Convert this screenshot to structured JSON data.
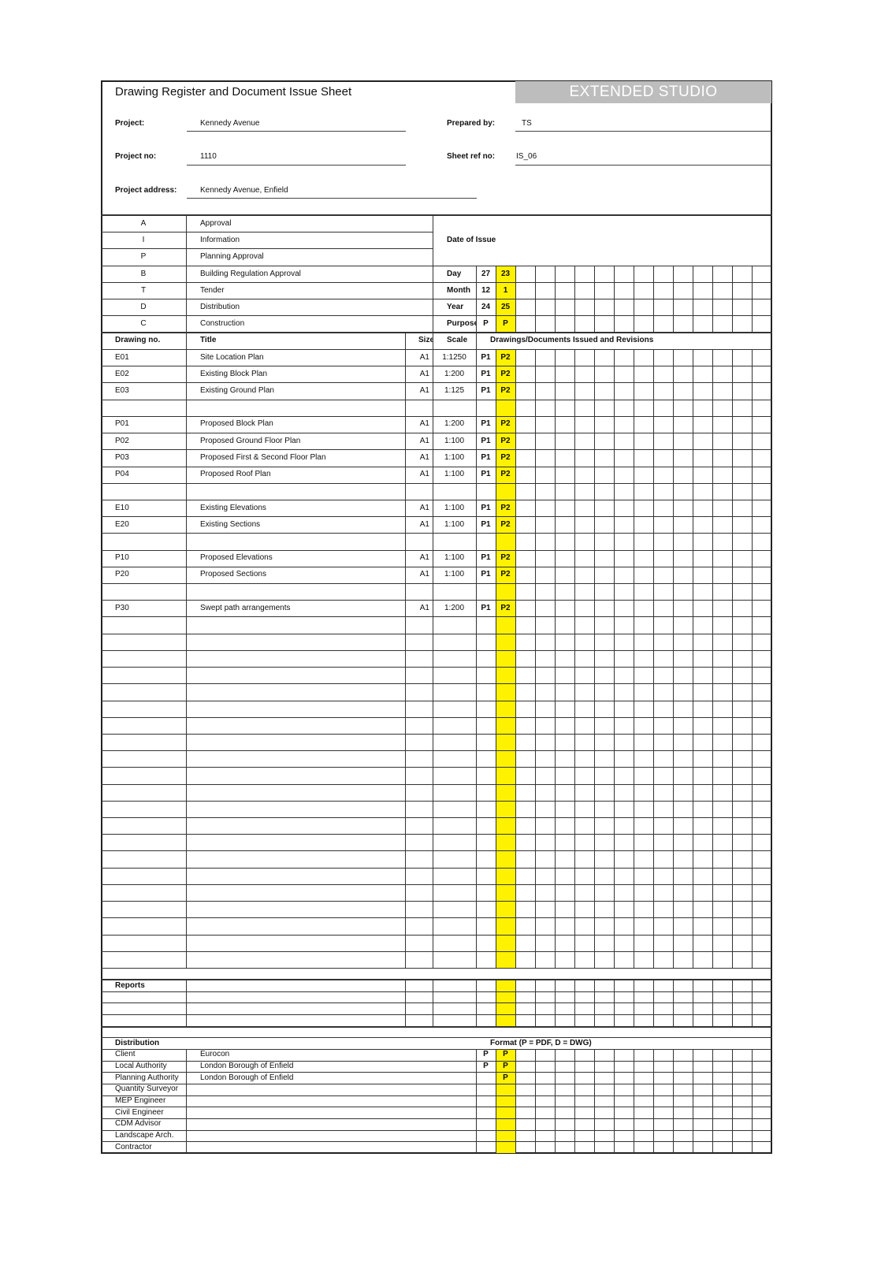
{
  "header": {
    "title": "Drawing Register and Document Issue Sheet",
    "brand": "EXTENDED STUDIO",
    "project_label": "Project:",
    "project": "Kennedy Avenue",
    "project_no_label": "Project no:",
    "project_no": "1110",
    "address_label": "Project address:",
    "address": "Kennedy Avenue, Enfield",
    "prepared_by_label": "Prepared by:",
    "prepared_by": "TS",
    "sheet_ref_label": "Sheet ref no:",
    "sheet_ref": "IS_06"
  },
  "purpose_key": [
    {
      "code": "A",
      "label": "Approval"
    },
    {
      "code": "I",
      "label": "Information"
    },
    {
      "code": "P",
      "label": "Planning Approval"
    },
    {
      "code": "B",
      "label": "Building Regulation Approval"
    },
    {
      "code": "T",
      "label": "Tender"
    },
    {
      "code": "D",
      "label": "Distribution"
    },
    {
      "code": "C",
      "label": "Construction"
    }
  ],
  "issue": {
    "label": "Date of Issue",
    "rows": [
      {
        "label": "Day",
        "values": [
          "27",
          "23"
        ]
      },
      {
        "label": "Month",
        "values": [
          "12",
          "1"
        ]
      },
      {
        "label": "Year",
        "values": [
          "24",
          "25"
        ]
      },
      {
        "label": "Purpose",
        "values": [
          "P",
          "P"
        ]
      }
    ]
  },
  "columns": {
    "drawing_no": "Drawing no.",
    "title": "Title",
    "size": "Size",
    "scale": "Scale",
    "revisions": "Drawings/Documents Issued and Revisions"
  },
  "drawings": [
    {
      "no": "E01",
      "title": "Site Location Plan",
      "size": "A1",
      "scale": "1:1250",
      "revs": [
        "P1",
        "P2"
      ]
    },
    {
      "no": "E02",
      "title": "Existing Block Plan",
      "size": "A1",
      "scale": "1:200",
      "revs": [
        "P1",
        "P2"
      ]
    },
    {
      "no": "E03",
      "title": "Existing Ground Plan",
      "size": "A1",
      "scale": "1:125",
      "revs": [
        "P1",
        "P2"
      ]
    },
    {},
    {
      "no": "P01",
      "title": "Proposed Block Plan",
      "size": "A1",
      "scale": "1:200",
      "revs": [
        "P1",
        "P2"
      ]
    },
    {
      "no": "P02",
      "title": "Proposed Ground Floor Plan",
      "size": "A1",
      "scale": "1:100",
      "revs": [
        "P1",
        "P2"
      ]
    },
    {
      "no": "P03",
      "title": "Proposed First & Second Floor Plan",
      "size": "A1",
      "scale": "1:100",
      "revs": [
        "P1",
        "P2"
      ]
    },
    {
      "no": "P04",
      "title": "Proposed Roof Plan",
      "size": "A1",
      "scale": "1:100",
      "revs": [
        "P1",
        "P2"
      ]
    },
    {},
    {
      "no": "E10",
      "title": "Existing Elevations",
      "size": "A1",
      "scale": "1:100",
      "revs": [
        "P1",
        "P2"
      ]
    },
    {
      "no": "E20",
      "title": "Existing Sections",
      "size": "A1",
      "scale": "1:100",
      "revs": [
        "P1",
        "P2"
      ]
    },
    {},
    {
      "no": "P10",
      "title": "Proposed Elevations",
      "size": "A1",
      "scale": "1:100",
      "revs": [
        "P1",
        "P2"
      ]
    },
    {
      "no": "P20",
      "title": "Proposed Sections",
      "size": "A1",
      "scale": "1:100",
      "revs": [
        "P1",
        "P2"
      ]
    },
    {},
    {
      "no": "P30",
      "title": "Swept path arrangements",
      "size": "A1",
      "scale": "1:200",
      "revs": [
        "P1",
        "P2"
      ]
    }
  ],
  "reports": {
    "label": "Reports"
  },
  "distribution": {
    "label": "Distribution",
    "format_label": "Format (P = PDF, D = DWG)",
    "rows": [
      {
        "role": "Client",
        "name": "Eurocon",
        "formats": [
          "P",
          "P"
        ]
      },
      {
        "role": "Local Authority",
        "name": "London Borough of Enfield",
        "formats": [
          "P",
          "P"
        ]
      },
      {
        "role": "Planning Authority",
        "name": "London Borough of Enfield",
        "formats": [
          "",
          "P"
        ]
      },
      {
        "role": "Quantity Surveyor",
        "name": "",
        "formats": []
      },
      {
        "role": "MEP Engineer",
        "name": "",
        "formats": []
      },
      {
        "role": "Civil Engineer",
        "name": "",
        "formats": []
      },
      {
        "role": "CDM Advisor",
        "name": "",
        "formats": []
      },
      {
        "role": "Landscape Arch.",
        "name": "",
        "formats": []
      },
      {
        "role": "Contractor",
        "name": "",
        "formats": []
      }
    ]
  },
  "colors": {
    "highlight": "#fff200",
    "brand_bg": "#bdbdbd"
  }
}
